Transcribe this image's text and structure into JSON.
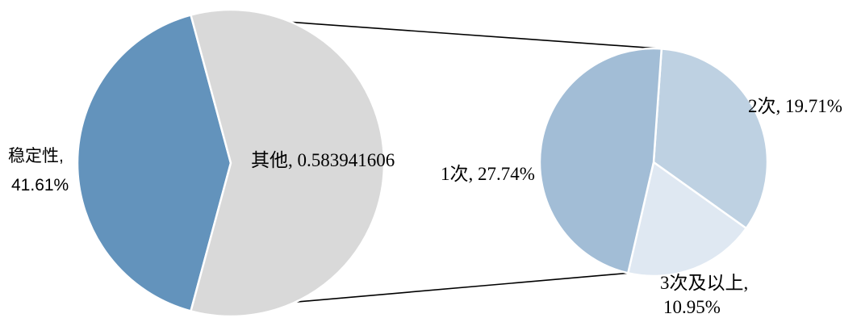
{
  "chart_data": {
    "type": "pie",
    "subtype": "pie-of-pie",
    "main_pie": {
      "slices": [
        {
          "name": "稳定性",
          "value": 0.4161,
          "color": "#6393bc"
        },
        {
          "name": "其他",
          "value": 0.583941606,
          "color": "#d9d9d9"
        }
      ],
      "labels": {
        "stability_line1": "稳定性,",
        "stability_line2": "41.61%",
        "other": "其他, 0.583941606"
      }
    },
    "detail_pie": {
      "slices": [
        {
          "name": "1次",
          "value": 0.2774,
          "color": "#a2bdd6"
        },
        {
          "name": "2次",
          "value": 0.1971,
          "color": "#bed1e2"
        },
        {
          "name": "3次及以上",
          "value": 0.1095,
          "color": "#dfe8f2"
        }
      ],
      "labels": {
        "once": "1次, 27.74%",
        "twice": "2次, 19.71%",
        "thrice_line1": "3次及以上,",
        "thrice_line2": "10.95%"
      }
    },
    "title": "",
    "legend": "none"
  }
}
